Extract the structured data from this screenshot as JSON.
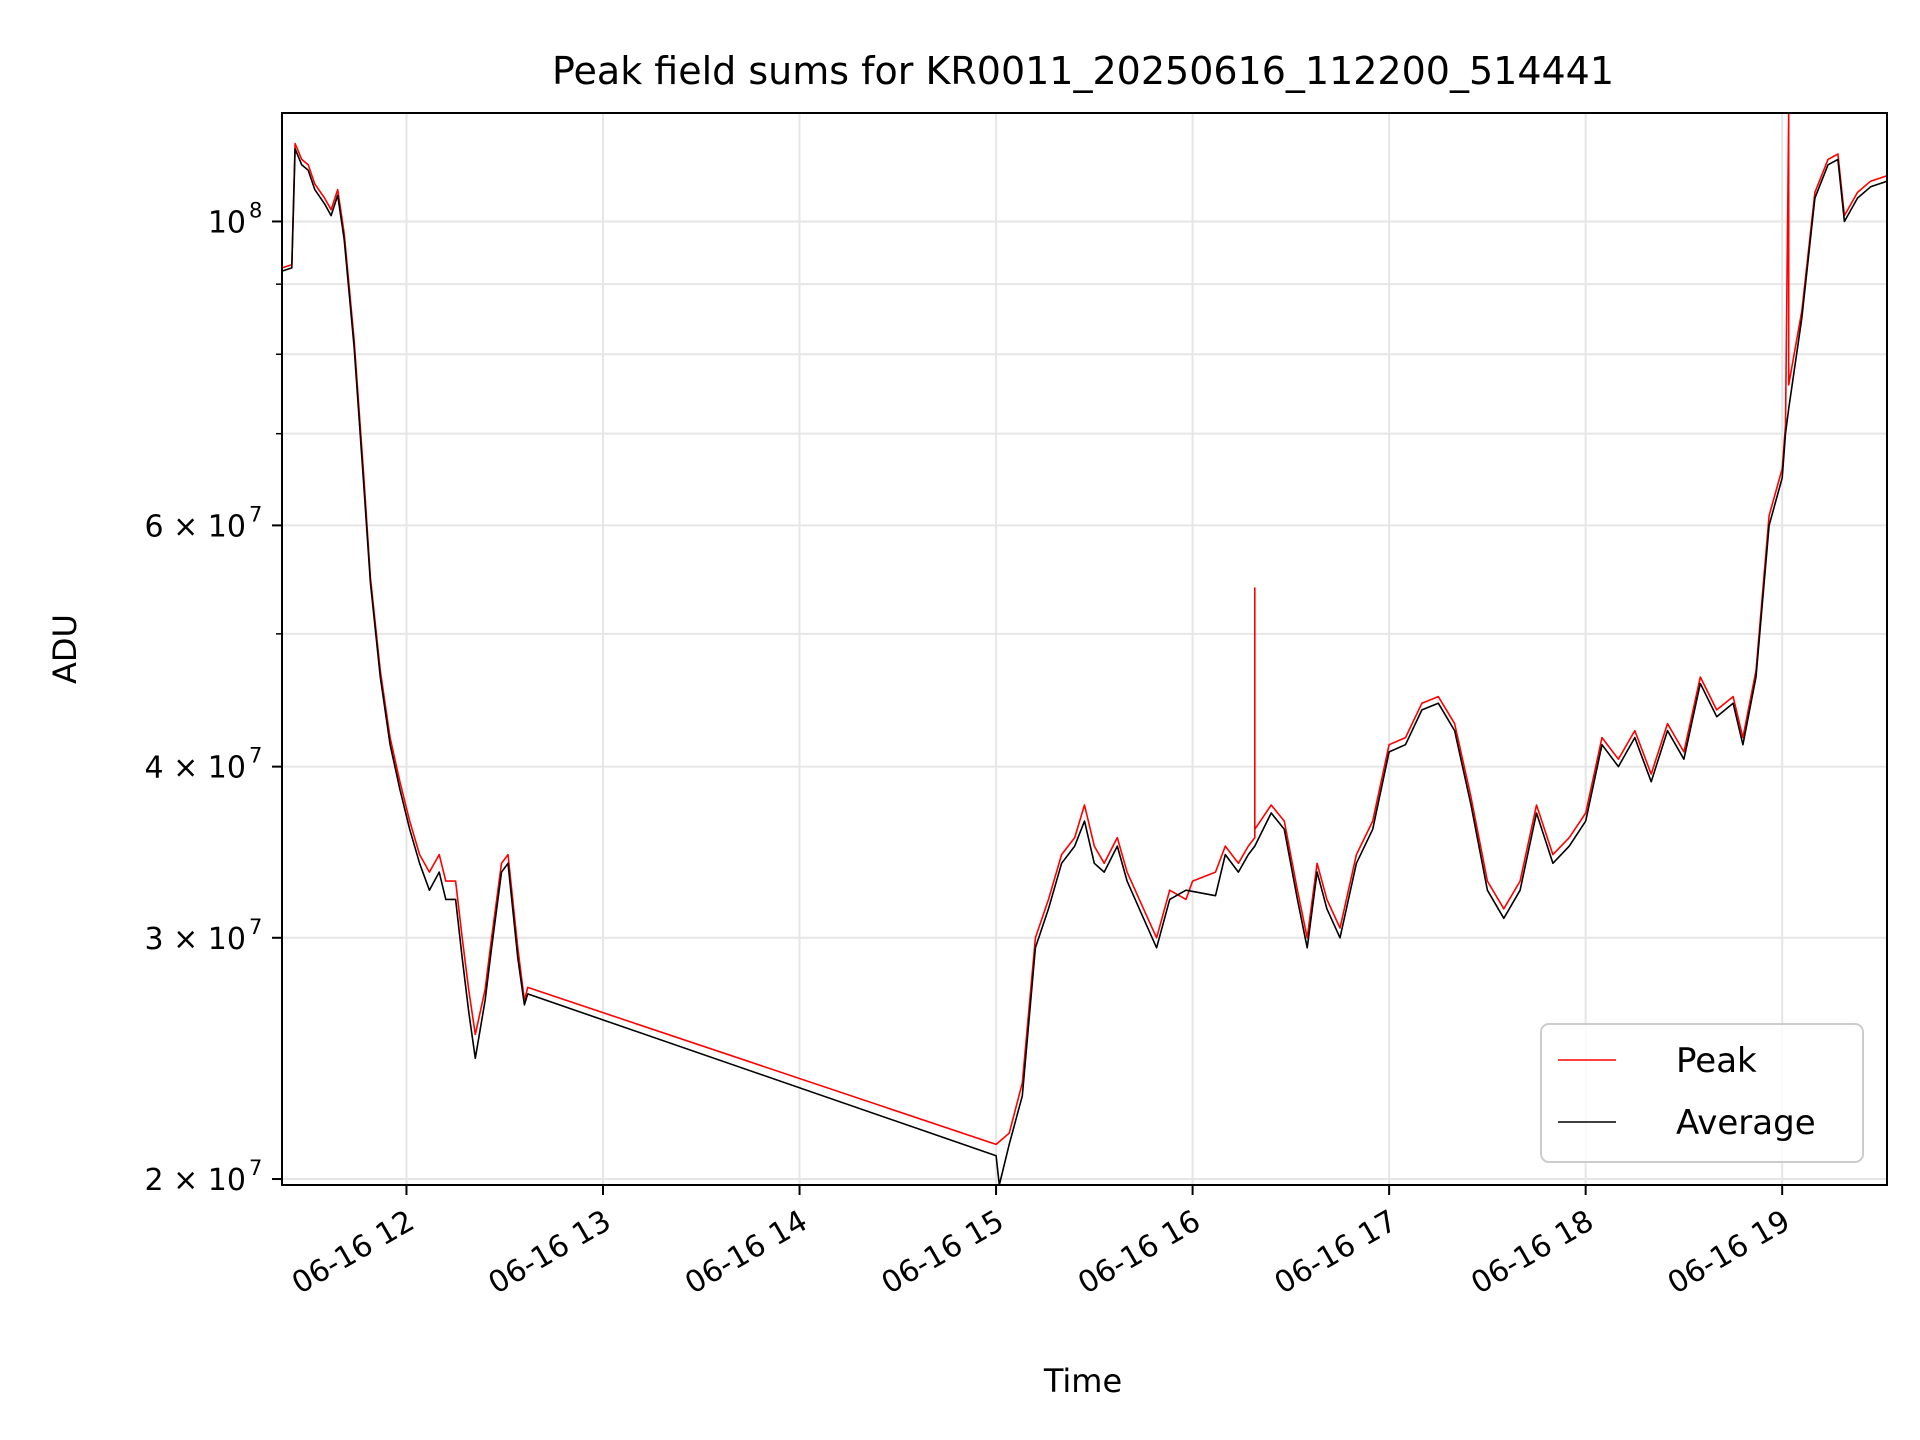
{
  "chart_data": {
    "type": "line",
    "title": "Peak field sums for KR0011_20250616_112200_514441",
    "xlabel": "Time",
    "ylabel": "ADU",
    "y_scale": "log",
    "ylim": [
      19800000,
      120000000
    ],
    "xlim": [
      "2025-06-16 11:22",
      "2025-06-16 19:32"
    ],
    "grid": true,
    "legend_position": "lower right",
    "x_ticks": [
      {
        "time": "2025-06-16 12:00",
        "label": "06-16 12"
      },
      {
        "time": "2025-06-16 13:00",
        "label": "06-16 13"
      },
      {
        "time": "2025-06-16 14:00",
        "label": "06-16 14"
      },
      {
        "time": "2025-06-16 15:00",
        "label": "06-16 15"
      },
      {
        "time": "2025-06-16 16:00",
        "label": "06-16 16"
      },
      {
        "time": "2025-06-16 17:00",
        "label": "06-16 17"
      },
      {
        "time": "2025-06-16 18:00",
        "label": "06-16 18"
      },
      {
        "time": "2025-06-16 19:00",
        "label": "06-16 19"
      }
    ],
    "y_major_ticks": [
      {
        "value": 20000000,
        "label": "2 × 10",
        "exp": "7"
      },
      {
        "value": 30000000,
        "label": "3 × 10",
        "exp": "7"
      },
      {
        "value": 40000000,
        "label": "4 × 10",
        "exp": "7"
      },
      {
        "value": 60000000,
        "label": "6 × 10",
        "exp": "7"
      },
      {
        "value": 100000000,
        "label": "10",
        "exp": "8"
      }
    ],
    "y_minor_ticks": [
      50000000,
      70000000,
      80000000,
      90000000
    ],
    "series": [
      {
        "name": "Peak",
        "color": "#ff0000",
        "points": [
          [
            "2025-06-16 11:22",
            92500000
          ],
          [
            "2025-06-16 11:25",
            93000000
          ],
          [
            "2025-06-16 11:26",
            114000000
          ],
          [
            "2025-06-16 11:28",
            111000000
          ],
          [
            "2025-06-16 11:30",
            110000000
          ],
          [
            "2025-06-16 11:32",
            106500000
          ],
          [
            "2025-06-16 11:35",
            104000000
          ],
          [
            "2025-06-16 11:37",
            102000000
          ],
          [
            "2025-06-16 11:39",
            105500000
          ],
          [
            "2025-06-16 11:41",
            98000000
          ],
          [
            "2025-06-16 11:44",
            82000000
          ],
          [
            "2025-06-16 11:47",
            65000000
          ],
          [
            "2025-06-16 11:49",
            55000000
          ],
          [
            "2025-06-16 11:52",
            47000000
          ],
          [
            "2025-06-16 11:55",
            42000000
          ],
          [
            "2025-06-16 11:58",
            39000000
          ],
          [
            "2025-06-16 12:01",
            36500000
          ],
          [
            "2025-06-16 12:04",
            34500000
          ],
          [
            "2025-06-16 12:07",
            33500000
          ],
          [
            "2025-06-16 12:10",
            34500000
          ],
          [
            "2025-06-16 12:12",
            33000000
          ],
          [
            "2025-06-16 12:15",
            33000000
          ],
          [
            "2025-06-16 12:17",
            30000000
          ],
          [
            "2025-06-16 12:19",
            27500000
          ],
          [
            "2025-06-16 12:21",
            25500000
          ],
          [
            "2025-06-16 12:24",
            27500000
          ],
          [
            "2025-06-16 12:26",
            30000000
          ],
          [
            "2025-06-16 12:29",
            34000000
          ],
          [
            "2025-06-16 12:31",
            34500000
          ],
          [
            "2025-06-16 12:34",
            29500000
          ],
          [
            "2025-06-16 12:36",
            27000000
          ],
          [
            "2025-06-16 12:37",
            27600000
          ],
          [
            "2025-06-16 15:00",
            21200000
          ],
          [
            "2025-06-16 15:04",
            21600000
          ],
          [
            "2025-06-16 15:08",
            23500000
          ],
          [
            "2025-06-16 15:12",
            30000000
          ],
          [
            "2025-06-16 15:16",
            32000000
          ],
          [
            "2025-06-16 15:20",
            34500000
          ],
          [
            "2025-06-16 15:24",
            35500000
          ],
          [
            "2025-06-16 15:27",
            37500000
          ],
          [
            "2025-06-16 15:30",
            35000000
          ],
          [
            "2025-06-16 15:33",
            34000000
          ],
          [
            "2025-06-16 15:37",
            35500000
          ],
          [
            "2025-06-16 15:40",
            33500000
          ],
          [
            "2025-06-16 15:45",
            31500000
          ],
          [
            "2025-06-16 15:49",
            30000000
          ],
          [
            "2025-06-16 15:53",
            32500000
          ],
          [
            "2025-06-16 15:58",
            32000000
          ],
          [
            "2025-06-16 16:00",
            33000000
          ],
          [
            "2025-06-16 16:07",
            33500000
          ],
          [
            "2025-06-16 16:10",
            35000000
          ],
          [
            "2025-06-16 16:14",
            34000000
          ],
          [
            "2025-06-16 16:17",
            35000000
          ],
          [
            "2025-06-16 16:19",
            35500000
          ],
          [
            "2025-06-16 16:19",
            54000000
          ],
          [
            "2025-06-16 16:19",
            36000000
          ],
          [
            "2025-06-16 16:24",
            37500000
          ],
          [
            "2025-06-16 16:28",
            36500000
          ],
          [
            "2025-06-16 16:32",
            32500000
          ],
          [
            "2025-06-16 16:35",
            30000000
          ],
          [
            "2025-06-16 16:38",
            34000000
          ],
          [
            "2025-06-16 16:41",
            32000000
          ],
          [
            "2025-06-16 16:45",
            30500000
          ],
          [
            "2025-06-16 16:50",
            34500000
          ],
          [
            "2025-06-16 16:55",
            36500000
          ],
          [
            "2025-06-16 17:00",
            41500000
          ],
          [
            "2025-06-16 17:05",
            42000000
          ],
          [
            "2025-06-16 17:10",
            44500000
          ],
          [
            "2025-06-16 17:15",
            45000000
          ],
          [
            "2025-06-16 17:20",
            43000000
          ],
          [
            "2025-06-16 17:25",
            38000000
          ],
          [
            "2025-06-16 17:30",
            33000000
          ],
          [
            "2025-06-16 17:35",
            31500000
          ],
          [
            "2025-06-16 17:40",
            33000000
          ],
          [
            "2025-06-16 17:45",
            37500000
          ],
          [
            "2025-06-16 17:50",
            34500000
          ],
          [
            "2025-06-16 17:55",
            35500000
          ],
          [
            "2025-06-16 18:00",
            37000000
          ],
          [
            "2025-06-16 18:05",
            42000000
          ],
          [
            "2025-06-16 18:10",
            40500000
          ],
          [
            "2025-06-16 18:15",
            42500000
          ],
          [
            "2025-06-16 18:20",
            39500000
          ],
          [
            "2025-06-16 18:25",
            43000000
          ],
          [
            "2025-06-16 18:30",
            41000000
          ],
          [
            "2025-06-16 18:35",
            46500000
          ],
          [
            "2025-06-16 18:40",
            44000000
          ],
          [
            "2025-06-16 18:45",
            45000000
          ],
          [
            "2025-06-16 18:48",
            42000000
          ],
          [
            "2025-06-16 18:52",
            47000000
          ],
          [
            "2025-06-16 18:56",
            61000000
          ],
          [
            "2025-06-16 19:00",
            66000000
          ],
          [
            "2025-06-16 19:01",
            71000000
          ],
          [
            "2025-06-16 19:02",
            120000000
          ],
          [
            "2025-06-16 19:02",
            76000000
          ],
          [
            "2025-06-16 19:06",
            86000000
          ],
          [
            "2025-06-16 19:10",
            105000000
          ],
          [
            "2025-06-16 19:14",
            111000000
          ],
          [
            "2025-06-16 19:17",
            112000000
          ],
          [
            "2025-06-16 19:19",
            101000000
          ],
          [
            "2025-06-16 19:23",
            105000000
          ],
          [
            "2025-06-16 19:27",
            107000000
          ],
          [
            "2025-06-16 19:32",
            108000000
          ]
        ]
      },
      {
        "name": "Average",
        "color": "#000000",
        "points": [
          [
            "2025-06-16 11:22",
            92000000
          ],
          [
            "2025-06-16 11:25",
            92500000
          ],
          [
            "2025-06-16 11:26",
            113000000
          ],
          [
            "2025-06-16 11:28",
            110000000
          ],
          [
            "2025-06-16 11:30",
            109000000
          ],
          [
            "2025-06-16 11:32",
            105500000
          ],
          [
            "2025-06-16 11:35",
            103000000
          ],
          [
            "2025-06-16 11:37",
            101000000
          ],
          [
            "2025-06-16 11:39",
            104500000
          ],
          [
            "2025-06-16 11:41",
            97000000
          ],
          [
            "2025-06-16 11:44",
            81000000
          ],
          [
            "2025-06-16 11:47",
            64000000
          ],
          [
            "2025-06-16 11:49",
            54500000
          ],
          [
            "2025-06-16 11:52",
            46500000
          ],
          [
            "2025-06-16 11:55",
            41500000
          ],
          [
            "2025-06-16 11:58",
            38500000
          ],
          [
            "2025-06-16 12:01",
            36000000
          ],
          [
            "2025-06-16 12:04",
            34000000
          ],
          [
            "2025-06-16 12:07",
            32500000
          ],
          [
            "2025-06-16 12:10",
            33500000
          ],
          [
            "2025-06-16 12:12",
            32000000
          ],
          [
            "2025-06-16 12:15",
            32000000
          ],
          [
            "2025-06-16 12:17",
            29000000
          ],
          [
            "2025-06-16 12:19",
            26500000
          ],
          [
            "2025-06-16 12:21",
            24500000
          ],
          [
            "2025-06-16 12:24",
            27000000
          ],
          [
            "2025-06-16 12:26",
            29500000
          ],
          [
            "2025-06-16 12:29",
            33500000
          ],
          [
            "2025-06-16 12:31",
            34000000
          ],
          [
            "2025-06-16 12:34",
            29000000
          ],
          [
            "2025-06-16 12:36",
            26800000
          ],
          [
            "2025-06-16 12:37",
            27300000
          ],
          [
            "2025-06-16 15:00",
            20800000
          ],
          [
            "2025-06-16 15:01",
            19800000
          ],
          [
            "2025-06-16 15:04",
            21200000
          ],
          [
            "2025-06-16 15:08",
            23000000
          ],
          [
            "2025-06-16 15:12",
            29500000
          ],
          [
            "2025-06-16 15:16",
            31500000
          ],
          [
            "2025-06-16 15:20",
            34000000
          ],
          [
            "2025-06-16 15:24",
            35000000
          ],
          [
            "2025-06-16 15:27",
            36500000
          ],
          [
            "2025-06-16 15:30",
            34000000
          ],
          [
            "2025-06-16 15:33",
            33500000
          ],
          [
            "2025-06-16 15:37",
            35000000
          ],
          [
            "2025-06-16 15:40",
            33000000
          ],
          [
            "2025-06-16 15:45",
            31000000
          ],
          [
            "2025-06-16 15:49",
            29500000
          ],
          [
            "2025-06-16 15:53",
            32000000
          ],
          [
            "2025-06-16 15:58",
            32500000
          ],
          [
            "2025-06-16 16:07",
            32200000
          ],
          [
            "2025-06-16 16:10",
            34500000
          ],
          [
            "2025-06-16 16:14",
            33500000
          ],
          [
            "2025-06-16 16:17",
            34500000
          ],
          [
            "2025-06-16 16:19",
            35000000
          ],
          [
            "2025-06-16 16:24",
            37000000
          ],
          [
            "2025-06-16 16:28",
            36000000
          ],
          [
            "2025-06-16 16:32",
            32000000
          ],
          [
            "2025-06-16 16:35",
            29500000
          ],
          [
            "2025-06-16 16:38",
            33500000
          ],
          [
            "2025-06-16 16:41",
            31500000
          ],
          [
            "2025-06-16 16:45",
            30000000
          ],
          [
            "2025-06-16 16:50",
            34000000
          ],
          [
            "2025-06-16 16:55",
            36000000
          ],
          [
            "2025-06-16 17:00",
            41000000
          ],
          [
            "2025-06-16 17:05",
            41500000
          ],
          [
            "2025-06-16 17:10",
            44000000
          ],
          [
            "2025-06-16 17:15",
            44500000
          ],
          [
            "2025-06-16 17:20",
            42500000
          ],
          [
            "2025-06-16 17:25",
            37500000
          ],
          [
            "2025-06-16 17:30",
            32500000
          ],
          [
            "2025-06-16 17:35",
            31000000
          ],
          [
            "2025-06-16 17:40",
            32500000
          ],
          [
            "2025-06-16 17:45",
            37000000
          ],
          [
            "2025-06-16 17:50",
            34000000
          ],
          [
            "2025-06-16 17:55",
            35000000
          ],
          [
            "2025-06-16 18:00",
            36500000
          ],
          [
            "2025-06-16 18:05",
            41500000
          ],
          [
            "2025-06-16 18:10",
            40000000
          ],
          [
            "2025-06-16 18:15",
            42000000
          ],
          [
            "2025-06-16 18:20",
            39000000
          ],
          [
            "2025-06-16 18:25",
            42500000
          ],
          [
            "2025-06-16 18:30",
            40500000
          ],
          [
            "2025-06-16 18:35",
            46000000
          ],
          [
            "2025-06-16 18:40",
            43500000
          ],
          [
            "2025-06-16 18:45",
            44500000
          ],
          [
            "2025-06-16 18:48",
            41500000
          ],
          [
            "2025-06-16 18:52",
            46500000
          ],
          [
            "2025-06-16 18:56",
            60000000
          ],
          [
            "2025-06-16 19:00",
            65000000
          ],
          [
            "2025-06-16 19:01",
            70000000
          ],
          [
            "2025-06-16 19:02",
            73000000
          ],
          [
            "2025-06-16 19:06",
            85000000
          ],
          [
            "2025-06-16 19:10",
            104000000
          ],
          [
            "2025-06-16 19:14",
            110000000
          ],
          [
            "2025-06-16 19:17",
            111000000
          ],
          [
            "2025-06-16 19:19",
            100000000
          ],
          [
            "2025-06-16 19:23",
            104000000
          ],
          [
            "2025-06-16 19:27",
            106000000
          ],
          [
            "2025-06-16 19:32",
            107000000
          ]
        ]
      }
    ]
  }
}
